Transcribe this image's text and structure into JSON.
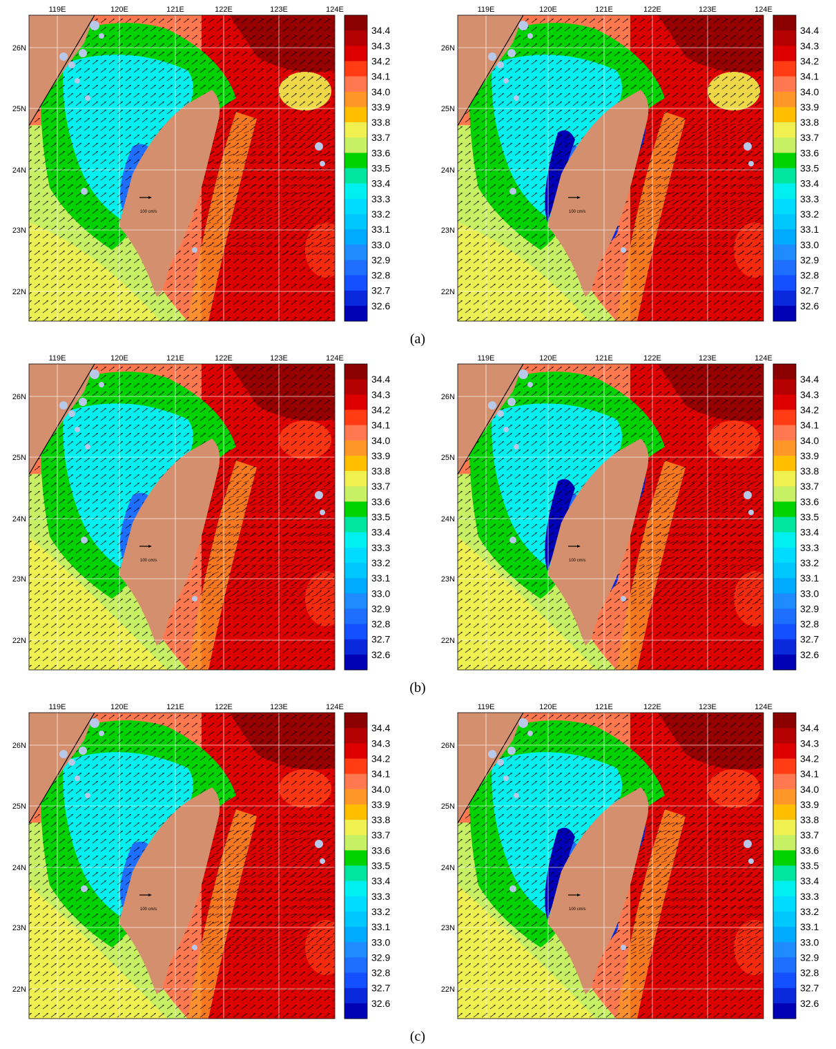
{
  "figure": {
    "panel_rows": [
      {
        "caption": "(a)",
        "panels": [
          "left",
          "right"
        ]
      },
      {
        "caption": "(b)",
        "panels": [
          "left",
          "right"
        ]
      },
      {
        "caption": "(c)",
        "panels": [
          "left",
          "right"
        ]
      }
    ],
    "longitude_ticks": [
      "119E",
      "120E",
      "121E",
      "122E",
      "123E",
      "124E"
    ],
    "latitude_ticks": [
      "26N",
      "25N",
      "24N",
      "23N",
      "22N"
    ],
    "colorbar_labels": [
      "34.4",
      "34.3",
      "34.2",
      "34.1",
      "34.0",
      "33.9",
      "33.8",
      "33.7",
      "33.6",
      "33.5",
      "33.4",
      "33.3",
      "33.2",
      "33.1",
      "33.0",
      "32.9",
      "32.8",
      "32.7",
      "32.6"
    ],
    "colorbar_colors": [
      "#8b0000",
      "#b40000",
      "#dc0000",
      "#ff3c14",
      "#ff7850",
      "#ff9628",
      "#ffbe00",
      "#f0f050",
      "#c8f064",
      "#00d200",
      "#00e6a0",
      "#00f0f0",
      "#00dcff",
      "#00c8ff",
      "#00aaff",
      "#1e8cff",
      "#1e6eff",
      "#1450ff",
      "#0a28dc",
      "#0000b4"
    ],
    "scale_arrow_label": "100 cm/s",
    "colors": {
      "land": "#d4906e",
      "islands": "#b8c8e8",
      "background": "#ffffff"
    }
  }
}
